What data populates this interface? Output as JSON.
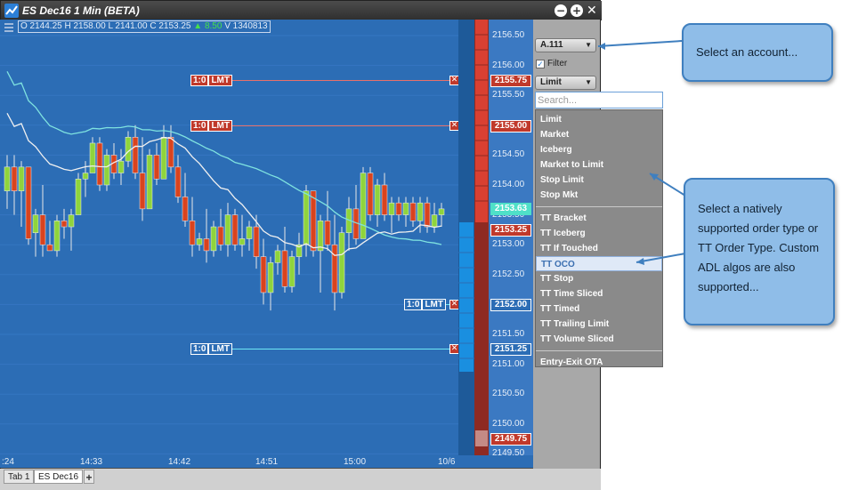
{
  "window": {
    "title": "ES Dec16 1 Min (BETA)",
    "minimize_glyph": "−",
    "maximize_glyph": "+",
    "close_glyph": "✕"
  },
  "chart": {
    "ohlc": {
      "open": "O 2144.25",
      "high": "H 2158.00",
      "low": "L 2141.00",
      "close": "C 2153.25",
      "change": "▲ 8.50",
      "volume": "V 1340813"
    },
    "price_ticks": [
      "2156.50",
      "2156.00",
      "2155.50",
      "2155.00",
      "2154.50",
      "2154.00",
      "2153.50",
      "2153.00",
      "2152.50",
      "2152.00",
      "2151.50",
      "2151.00",
      "2150.50",
      "2150.00",
      "2149.50"
    ],
    "time_ticks": [
      ":24",
      "14:33",
      "14:42",
      "14:51",
      "15:00",
      "10/6"
    ],
    "orders": [
      {
        "label_qty": "1:0",
        "label_type": "LMT",
        "price": "2155.75",
        "side": "sell"
      },
      {
        "label_qty": "1:0",
        "label_type": "LMT",
        "price": "2155.00",
        "side": "sell"
      },
      {
        "label_qty": "1:0",
        "label_type": "LMT",
        "price": "2152.00",
        "side": "buy"
      },
      {
        "label_qty": "1:0",
        "label_type": "LMT",
        "price": "2151.25",
        "side": "buy"
      }
    ],
    "last_price": "2153.63",
    "current_price": "2153.25",
    "low_price_tag": "2149.75",
    "cancel_glyph": "✕"
  },
  "order_panel": {
    "account": "A.111",
    "filter_label": "Filter",
    "filter_checked": true,
    "order_type": "Limit",
    "search_placeholder": "Search...",
    "order_types_native": [
      "Limit",
      "Market",
      "Iceberg",
      "Market to Limit",
      "Stop Limit",
      "Stop Mkt"
    ],
    "order_types_tt": [
      "TT Bracket",
      "TT Iceberg",
      "TT If Touched",
      "TT OCO",
      "TT Stop",
      "TT Time Sliced",
      "TT Timed",
      "TT Trailing Limit",
      "TT Volume Sliced"
    ],
    "order_types_adl": [
      "Entry-Exit OTA"
    ],
    "selected": "TT OCO"
  },
  "tabs": [
    {
      "label": "Tab 1",
      "active": false
    },
    {
      "label": "ES Dec16",
      "active": true
    }
  ],
  "tab_add_glyph": "+",
  "callouts": {
    "account": "Select an account...",
    "order_type": "Select a natively supported order type or TT Order Type. Custom ADL algos are also supported..."
  },
  "colors": {
    "chart_bg": "#2c6db5",
    "up_candle": "#8fd43c",
    "down_candle": "#d9431e",
    "sell_line": "#e8706a",
    "buy_line": "#6ee7f5",
    "callout_bg": "#8fbde8"
  },
  "candles": [
    {
      "o": 2153.9,
      "h": 2154.5,
      "l": 2153.6,
      "c": 2154.3
    },
    {
      "o": 2154.3,
      "h": 2154.5,
      "l": 2153.5,
      "c": 2153.9
    },
    {
      "o": 2153.9,
      "h": 2154.4,
      "l": 2153.3,
      "c": 2154.3
    },
    {
      "o": 2154.3,
      "h": 2154.3,
      "l": 2153.0,
      "c": 2153.1
    },
    {
      "o": 2153.2,
      "h": 2153.6,
      "l": 2152.8,
      "c": 2153.5
    },
    {
      "o": 2153.5,
      "h": 2154.0,
      "l": 2152.8,
      "c": 2153.0
    },
    {
      "o": 2153.0,
      "h": 2153.4,
      "l": 2152.9,
      "c": 2152.9
    },
    {
      "o": 2152.9,
      "h": 2153.5,
      "l": 2152.8,
      "c": 2153.4
    },
    {
      "o": 2153.4,
      "h": 2153.6,
      "l": 2153.1,
      "c": 2153.3
    },
    {
      "o": 2153.3,
      "h": 2153.6,
      "l": 2152.9,
      "c": 2153.5
    },
    {
      "o": 2153.5,
      "h": 2154.2,
      "l": 2153.5,
      "c": 2154.1
    },
    {
      "o": 2154.1,
      "h": 2154.4,
      "l": 2153.8,
      "c": 2154.2
    },
    {
      "o": 2154.2,
      "h": 2154.8,
      "l": 2154.2,
      "c": 2154.7
    },
    {
      "o": 2154.7,
      "h": 2154.8,
      "l": 2153.9,
      "c": 2154.0
    },
    {
      "o": 2154.0,
      "h": 2154.6,
      "l": 2153.9,
      "c": 2154.5
    },
    {
      "o": 2154.5,
      "h": 2154.7,
      "l": 2154.1,
      "c": 2154.2
    },
    {
      "o": 2154.2,
      "h": 2154.6,
      "l": 2154.0,
      "c": 2154.4
    },
    {
      "o": 2154.4,
      "h": 2154.9,
      "l": 2154.3,
      "c": 2154.8
    },
    {
      "o": 2154.8,
      "h": 2155.0,
      "l": 2154.1,
      "c": 2154.2
    },
    {
      "o": 2154.2,
      "h": 2154.8,
      "l": 2153.4,
      "c": 2153.6
    },
    {
      "o": 2153.6,
      "h": 2154.6,
      "l": 2153.6,
      "c": 2154.5
    },
    {
      "o": 2154.5,
      "h": 2154.7,
      "l": 2154.0,
      "c": 2154.1
    },
    {
      "o": 2154.1,
      "h": 2155.0,
      "l": 2154.1,
      "c": 2154.8
    },
    {
      "o": 2154.8,
      "h": 2155.0,
      "l": 2154.2,
      "c": 2154.3
    },
    {
      "o": 2154.3,
      "h": 2154.5,
      "l": 2153.7,
      "c": 2153.8
    },
    {
      "o": 2153.8,
      "h": 2154.2,
      "l": 2153.3,
      "c": 2153.4
    },
    {
      "o": 2153.4,
      "h": 2153.8,
      "l": 2152.8,
      "c": 2153.0
    },
    {
      "o": 2153.0,
      "h": 2153.2,
      "l": 2152.9,
      "c": 2153.1
    },
    {
      "o": 2153.1,
      "h": 2153.6,
      "l": 2152.7,
      "c": 2152.9
    },
    {
      "o": 2152.9,
      "h": 2153.4,
      "l": 2152.8,
      "c": 2153.3
    },
    {
      "o": 2153.3,
      "h": 2153.6,
      "l": 2152.9,
      "c": 2153.0
    },
    {
      "o": 2153.0,
      "h": 2153.7,
      "l": 2152.8,
      "c": 2153.5
    },
    {
      "o": 2153.5,
      "h": 2153.6,
      "l": 2152.9,
      "c": 2153.0
    },
    {
      "o": 2153.0,
      "h": 2153.5,
      "l": 2152.8,
      "c": 2153.1
    },
    {
      "o": 2153.1,
      "h": 2153.4,
      "l": 2152.9,
      "c": 2153.3
    },
    {
      "o": 2153.3,
      "h": 2153.5,
      "l": 2152.6,
      "c": 2152.8
    },
    {
      "o": 2152.8,
      "h": 2153.1,
      "l": 2152.0,
      "c": 2152.2
    },
    {
      "o": 2152.2,
      "h": 2152.8,
      "l": 2151.9,
      "c": 2152.7
    },
    {
      "o": 2152.7,
      "h": 2153.0,
      "l": 2152.5,
      "c": 2152.9
    },
    {
      "o": 2152.9,
      "h": 2153.3,
      "l": 2152.2,
      "c": 2152.3
    },
    {
      "o": 2152.3,
      "h": 2152.9,
      "l": 2152.2,
      "c": 2152.8
    },
    {
      "o": 2152.8,
      "h": 2153.2,
      "l": 2152.5,
      "c": 2153.0
    },
    {
      "o": 2153.0,
      "h": 2154.0,
      "l": 2152.8,
      "c": 2153.9
    },
    {
      "o": 2153.9,
      "h": 2153.9,
      "l": 2152.8,
      "c": 2152.9
    },
    {
      "o": 2152.9,
      "h": 2153.5,
      "l": 2152.2,
      "c": 2153.4
    },
    {
      "o": 2153.4,
      "h": 2153.9,
      "l": 2152.9,
      "c": 2153.0
    },
    {
      "o": 2153.0,
      "h": 2153.5,
      "l": 2151.9,
      "c": 2152.2
    },
    {
      "o": 2152.2,
      "h": 2153.3,
      "l": 2152.1,
      "c": 2153.2
    },
    {
      "o": 2153.2,
      "h": 2153.8,
      "l": 2152.9,
      "c": 2153.6
    },
    {
      "o": 2153.6,
      "h": 2154.0,
      "l": 2153.0,
      "c": 2153.1
    },
    {
      "o": 2153.1,
      "h": 2154.3,
      "l": 2153.1,
      "c": 2154.2
    },
    {
      "o": 2154.2,
      "h": 2154.3,
      "l": 2153.4,
      "c": 2153.5
    },
    {
      "o": 2153.5,
      "h": 2154.1,
      "l": 2153.3,
      "c": 2154.0
    },
    {
      "o": 2154.0,
      "h": 2154.2,
      "l": 2153.4,
      "c": 2153.5
    },
    {
      "o": 2153.5,
      "h": 2153.8,
      "l": 2153.2,
      "c": 2153.7
    },
    {
      "o": 2153.7,
      "h": 2153.8,
      "l": 2153.4,
      "c": 2153.5
    },
    {
      "o": 2153.5,
      "h": 2153.8,
      "l": 2153.3,
      "c": 2153.7
    },
    {
      "o": 2153.7,
      "h": 2153.8,
      "l": 2153.3,
      "c": 2153.4
    },
    {
      "o": 2153.4,
      "h": 2153.8,
      "l": 2153.2,
      "c": 2153.7
    },
    {
      "o": 2153.7,
      "h": 2153.8,
      "l": 2153.2,
      "c": 2153.3
    },
    {
      "o": 2153.3,
      "h": 2153.7,
      "l": 2153.2,
      "c": 2153.5
    },
    {
      "o": 2153.5,
      "h": 2153.7,
      "l": 2153.3,
      "c": 2153.6
    }
  ]
}
